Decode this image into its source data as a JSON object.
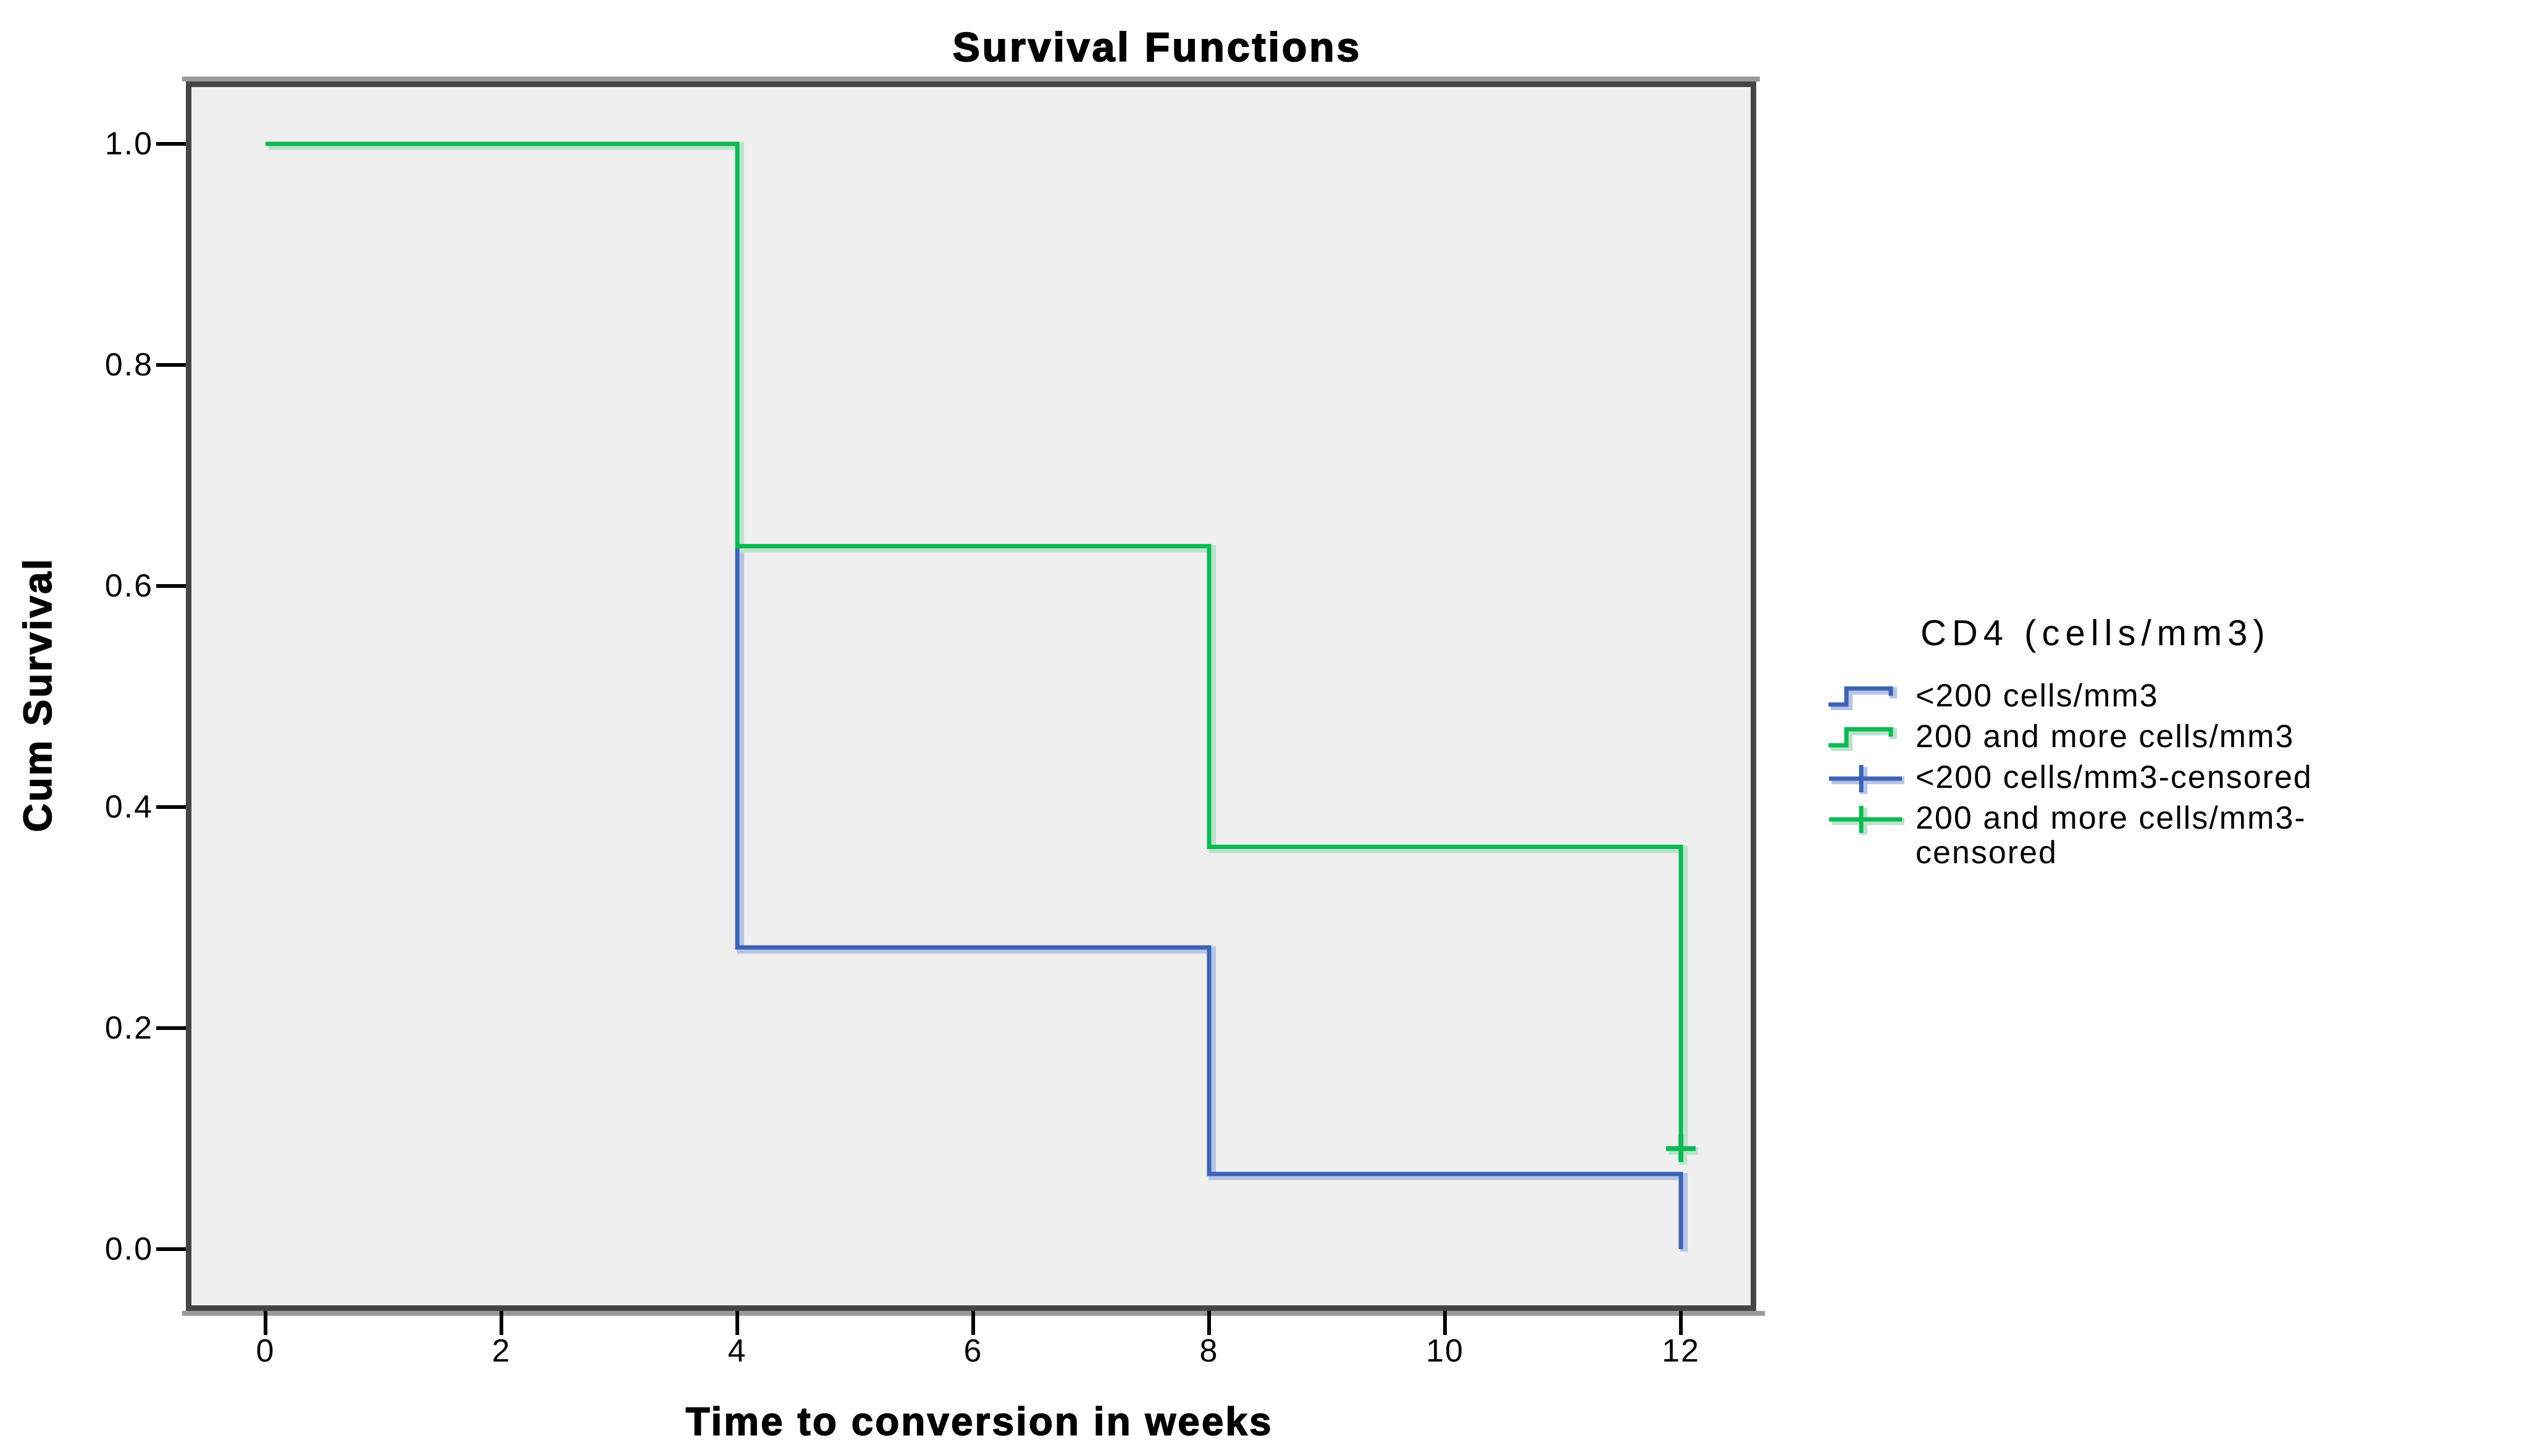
{
  "title": "Survival Functions",
  "x_axis": {
    "label": "Time to conversion in weeks",
    "ticks": [
      {
        "v": 0,
        "label": "0"
      },
      {
        "v": 2,
        "label": "2"
      },
      {
        "v": 4,
        "label": "4"
      },
      {
        "v": 6,
        "label": "6"
      },
      {
        "v": 8,
        "label": "8"
      },
      {
        "v": 10,
        "label": "10"
      },
      {
        "v": 12,
        "label": "12"
      }
    ]
  },
  "y_axis": {
    "label": "Cum Survival",
    "ticks": [
      {
        "v": 1.0,
        "label": "1.0"
      },
      {
        "v": 0.8,
        "label": "0.8"
      },
      {
        "v": 0.6,
        "label": "0.6"
      },
      {
        "v": 0.4,
        "label": "0.4"
      },
      {
        "v": 0.2,
        "label": "0.2"
      },
      {
        "v": 0.0,
        "label": "0.0"
      }
    ]
  },
  "legend": {
    "title": "CD4 (cells/mm3)",
    "items": [
      {
        "label": "<200 cells/mm3",
        "marker": "step",
        "color": "#3D63B6"
      },
      {
        "label": "200 and more cells/mm3",
        "marker": "step",
        "color": "#0EB853"
      },
      {
        "label": "<200 cells/mm3-censored",
        "marker": "plus",
        "color": "#3D63B6"
      },
      {
        "label": "200 and more cells/mm3-censored",
        "marker": "plus",
        "color": "#0EB853"
      }
    ]
  },
  "colors": {
    "blue": "#3D63B6",
    "blue_halo": "#b7c4e8",
    "green": "#0EB853",
    "green_halo": "#b9e4ca",
    "plot_bg": "#efefef",
    "frame": "#454545",
    "frame_light": "#9b9b9b",
    "tick": "#000000"
  },
  "chart_data": {
    "type": "line",
    "subtype": "kaplan-meier-step",
    "title": "Survival Functions",
    "xlabel": "Time to conversion in weeks",
    "ylabel": "Cum Survival",
    "xlim": [
      -0.7,
      12.8
    ],
    "ylim": [
      -0.06,
      1.06
    ],
    "x_ticks": [
      0,
      2,
      4,
      6,
      8,
      10,
      12
    ],
    "y_ticks": [
      0.0,
      0.2,
      0.4,
      0.6,
      0.8,
      1.0
    ],
    "grid": false,
    "legend_position": "right",
    "series": [
      {
        "name": "<200 cells/mm3",
        "color": "#3D63B6",
        "halo": "#b7c4e8",
        "points": [
          [
            0,
            1.0
          ],
          [
            4,
            1.0
          ],
          [
            4,
            0.273
          ],
          [
            8,
            0.273
          ],
          [
            8,
            0.068
          ],
          [
            12,
            0.068
          ],
          [
            12,
            0.0
          ]
        ],
        "censored_points": []
      },
      {
        "name": "200 and more cells/mm3",
        "color": "#0EB853",
        "halo": "#b9e4ca",
        "points": [
          [
            0,
            1.0
          ],
          [
            4,
            1.0
          ],
          [
            4,
            0.636
          ],
          [
            8,
            0.636
          ],
          [
            8,
            0.364
          ],
          [
            12,
            0.364
          ],
          [
            12,
            0.091
          ]
        ],
        "censored_points": [
          [
            12,
            0.091
          ]
        ]
      }
    ]
  }
}
